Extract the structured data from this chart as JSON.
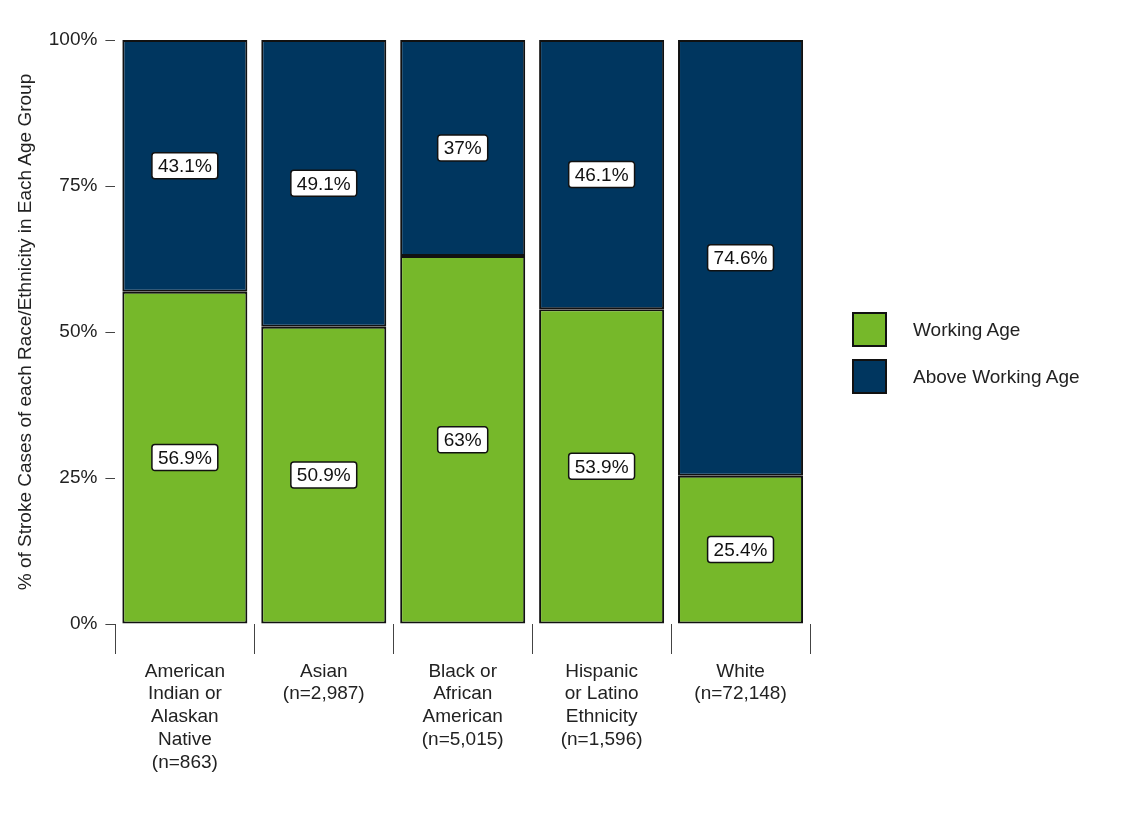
{
  "chart_data": {
    "type": "bar",
    "stacked": true,
    "ylabel": "% of Stroke Cases of each Race/Ethnicity in Each Age Group",
    "categories": [
      "American\nIndian or\nAlaskan\nNative\n(n=863)",
      "Asian\n(n=2,987)",
      "Black or\nAfrican\nAmerican\n(n=5,015)",
      "Hispanic\nor Latino\nEthnicity\n(n=1,596)",
      "White\n(n=72,148)"
    ],
    "series": [
      {
        "name": "Working Age",
        "color": "#76b82a",
        "values": [
          56.9,
          50.9,
          63,
          53.9,
          25.4
        ],
        "value_labels": [
          "56.9%",
          "50.9%",
          "63%",
          "53.9%",
          "25.4%"
        ]
      },
      {
        "name": "Above Working Age",
        "color": "#00365f",
        "values": [
          43.1,
          49.1,
          37,
          46.1,
          74.6
        ],
        "value_labels": [
          "43.1%",
          "49.1%",
          "37%",
          "46.1%",
          "74.6%"
        ]
      }
    ],
    "ylim": [
      0,
      100
    ],
    "yticks": [
      {
        "value": 0,
        "label": "0%"
      },
      {
        "value": 25,
        "label": "25%"
      },
      {
        "value": 50,
        "label": "50%"
      },
      {
        "value": 75,
        "label": "75%"
      },
      {
        "value": 100,
        "label": "100%"
      }
    ],
    "grid": false,
    "legend": "right"
  }
}
